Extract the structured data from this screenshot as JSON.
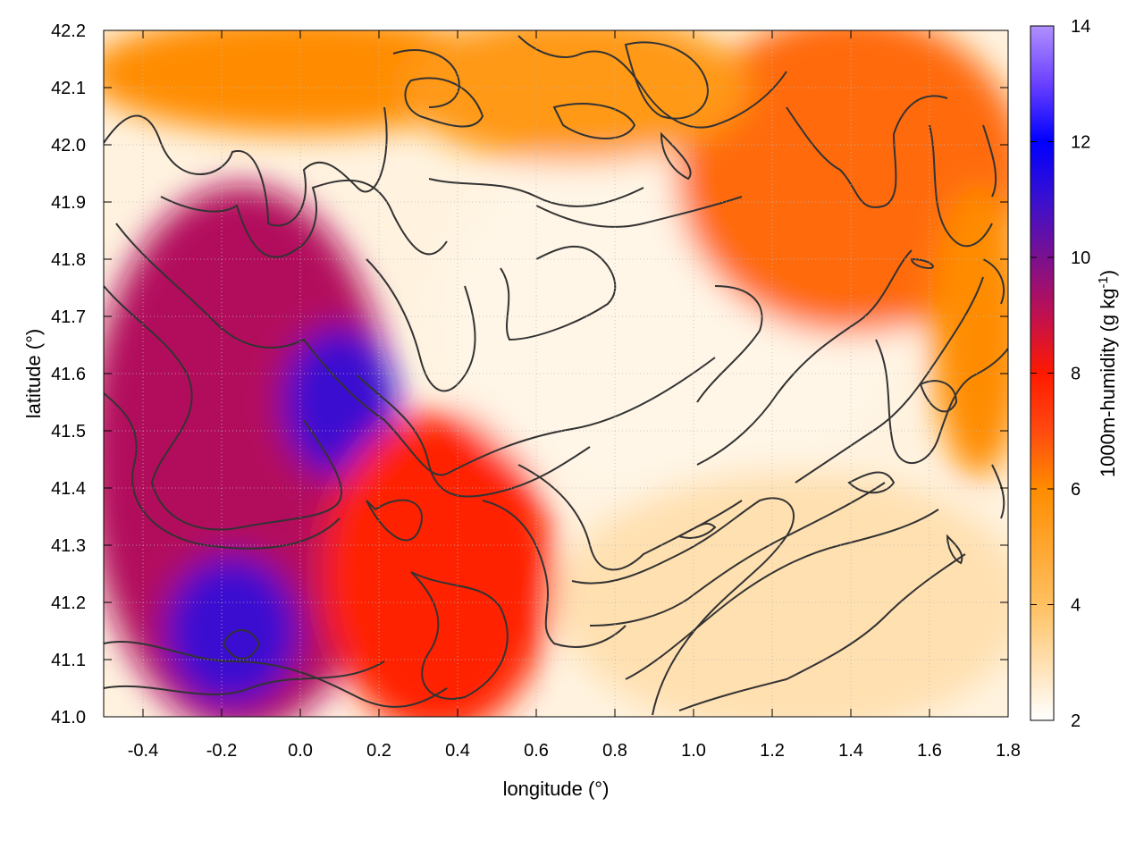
{
  "chart_data": {
    "type": "heatmap",
    "title": "",
    "xlabel": "longitude (°)",
    "ylabel": "latitude (°)",
    "xlim": [
      -0.5,
      1.8
    ],
    "ylim": [
      41.0,
      42.2
    ],
    "xticks": [
      -0.4,
      -0.2,
      0.0,
      0.2,
      0.4,
      0.6,
      0.8,
      1.0,
      1.2,
      1.4,
      1.6,
      1.8
    ],
    "xtick_labels": [
      "-0.4",
      "-0.2",
      "0.0",
      "0.2",
      "0.4",
      "0.6",
      "0.8",
      "1.0",
      "1.2",
      "1.4",
      "1.6",
      "1.8"
    ],
    "yticks": [
      41.0,
      41.1,
      41.2,
      41.3,
      41.4,
      41.5,
      41.6,
      41.7,
      41.8,
      41.9,
      42.0,
      42.1,
      42.2
    ],
    "ytick_labels": [
      "41.0",
      "41.1",
      "41.2",
      "41.3",
      "41.4",
      "41.5",
      "41.6",
      "41.7",
      "41.8",
      "41.9",
      "42.0",
      "42.1",
      "42.2"
    ],
    "grid": true,
    "colorbar": {
      "label_main": "1000m-humidity (g kg",
      "label_sup": "-1",
      "label_end": ")",
      "range": [
        2,
        14
      ],
      "ticks": [
        2,
        4,
        6,
        8,
        10,
        12,
        14
      ],
      "tick_labels": [
        "2",
        "4",
        "6",
        "8",
        "10",
        "12",
        "14"
      ],
      "palette": [
        [
          2,
          "#ffffff"
        ],
        [
          4,
          "#ffc060"
        ],
        [
          6,
          "#ff8c00"
        ],
        [
          7,
          "#ff4a10"
        ],
        [
          8,
          "#ff1a00"
        ],
        [
          9,
          "#c01050"
        ],
        [
          10,
          "#7a1090"
        ],
        [
          11,
          "#3a10d0"
        ],
        [
          12,
          "#0000ff"
        ],
        [
          13,
          "#6a40ff"
        ],
        [
          14,
          "#b090ff"
        ]
      ]
    },
    "field_regions": [
      {
        "name": "moist-west",
        "lon": [
          -0.5,
          0.2
        ],
        "lat": [
          41.0,
          41.9
        ],
        "value": 9.2
      },
      {
        "name": "blue-core-north",
        "lon": [
          0.0,
          0.2
        ],
        "lat": [
          41.45,
          41.65
        ],
        "value": 11.0
      },
      {
        "name": "blue-core-south",
        "lon": [
          -0.3,
          -0.05
        ],
        "lat": [
          41.05,
          41.25
        ],
        "value": 11.0
      },
      {
        "name": "moist-center",
        "lon": [
          0.1,
          0.6
        ],
        "lat": [
          41.0,
          41.5
        ],
        "value": 7.8
      },
      {
        "name": "dry-interior",
        "lon": [
          0.4,
          1.5
        ],
        "lat": [
          41.4,
          42.0
        ],
        "value": 2.3
      },
      {
        "name": "dry-southeast",
        "lon": [
          0.7,
          1.8
        ],
        "lat": [
          41.0,
          41.4
        ],
        "value": 3.0
      },
      {
        "name": "moist-northeast",
        "lon": [
          1.0,
          1.8
        ],
        "lat": [
          41.7,
          42.2
        ],
        "value": 6.5
      },
      {
        "name": "moist-east-edge",
        "lon": [
          1.65,
          1.8
        ],
        "lat": [
          41.45,
          41.9
        ],
        "value": 6.0
      },
      {
        "name": "moist-north-strip",
        "lon": [
          -0.5,
          0.5
        ],
        "lat": [
          42.05,
          42.2
        ],
        "value": 6.0
      },
      {
        "name": "moist-north-patch",
        "lon": [
          0.3,
          1.1
        ],
        "lat": [
          42.0,
          42.2
        ],
        "value": 5.5
      }
    ]
  }
}
